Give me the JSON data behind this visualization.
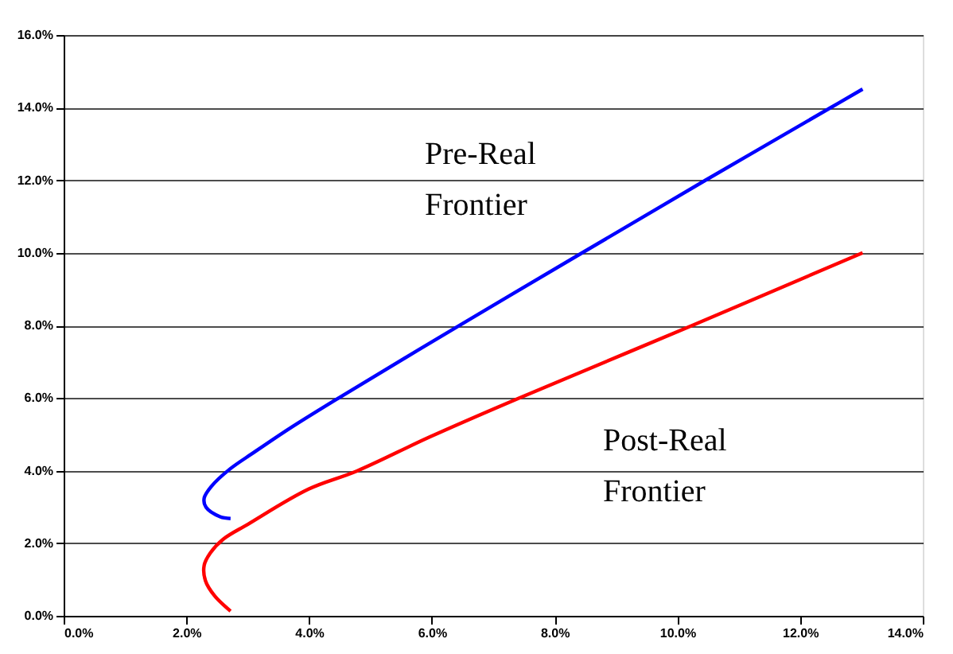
{
  "chart_data": {
    "type": "line",
    "series": [
      {
        "color": "#0000ff",
        "x": [
          2.72,
          2.55,
          2.32,
          2.29,
          2.41,
          2.7,
          3.1,
          3.69,
          4.49,
          6.47,
          8.45,
          10.46,
          12.5,
          13.02
        ],
        "values": [
          2.68,
          2.73,
          2.99,
          3.24,
          3.57,
          4.03,
          4.5,
          5.17,
          6.01,
          8.02,
          10.0,
          12.0,
          14.0,
          14.51
        ]
      },
      {
        "color": "#ff0000",
        "x": [
          2.72,
          2.46,
          2.31,
          2.29,
          2.39,
          2.6,
          3.0,
          3.99,
          4.78,
          5.97,
          7.41,
          10.23,
          13.02
        ],
        "values": [
          0.13,
          0.55,
          0.97,
          1.39,
          1.73,
          2.11,
          2.52,
          3.49,
          3.99,
          4.93,
          5.99,
          7.99,
          10.0
        ]
      }
    ],
    "annotations": [
      "Pre-Real Frontier",
      "Post-Real Frontier"
    ],
    "xlim": [
      0,
      14
    ],
    "xticks": [
      {
        "value": 0,
        "label": "0.0%"
      },
      {
        "value": 2,
        "label": "2.0%"
      },
      {
        "value": 4,
        "label": "4.0%"
      },
      {
        "value": 6,
        "label": "6.0%"
      },
      {
        "value": 8,
        "label": "8.0%"
      },
      {
        "value": 10,
        "label": "10.0%"
      },
      {
        "value": 12,
        "label": "12.0%"
      },
      {
        "value": 14,
        "label": "14.0%"
      }
    ],
    "ylim": [
      0,
      16
    ],
    "yticks": [
      {
        "value": 0,
        "label": "0.0%"
      },
      {
        "value": 2,
        "label": "2.0%"
      },
      {
        "value": 4,
        "label": "4.0%"
      },
      {
        "value": 6,
        "label": "6.0%"
      },
      {
        "value": 8,
        "label": "8.0%"
      },
      {
        "value": 10,
        "label": "10.0%"
      },
      {
        "value": 12,
        "label": "12.0%"
      },
      {
        "value": 14,
        "label": "14.0%"
      },
      {
        "value": 16,
        "label": "16.0%"
      }
    ],
    "grid": "y",
    "marker": "none",
    "line_style": "solid"
  }
}
